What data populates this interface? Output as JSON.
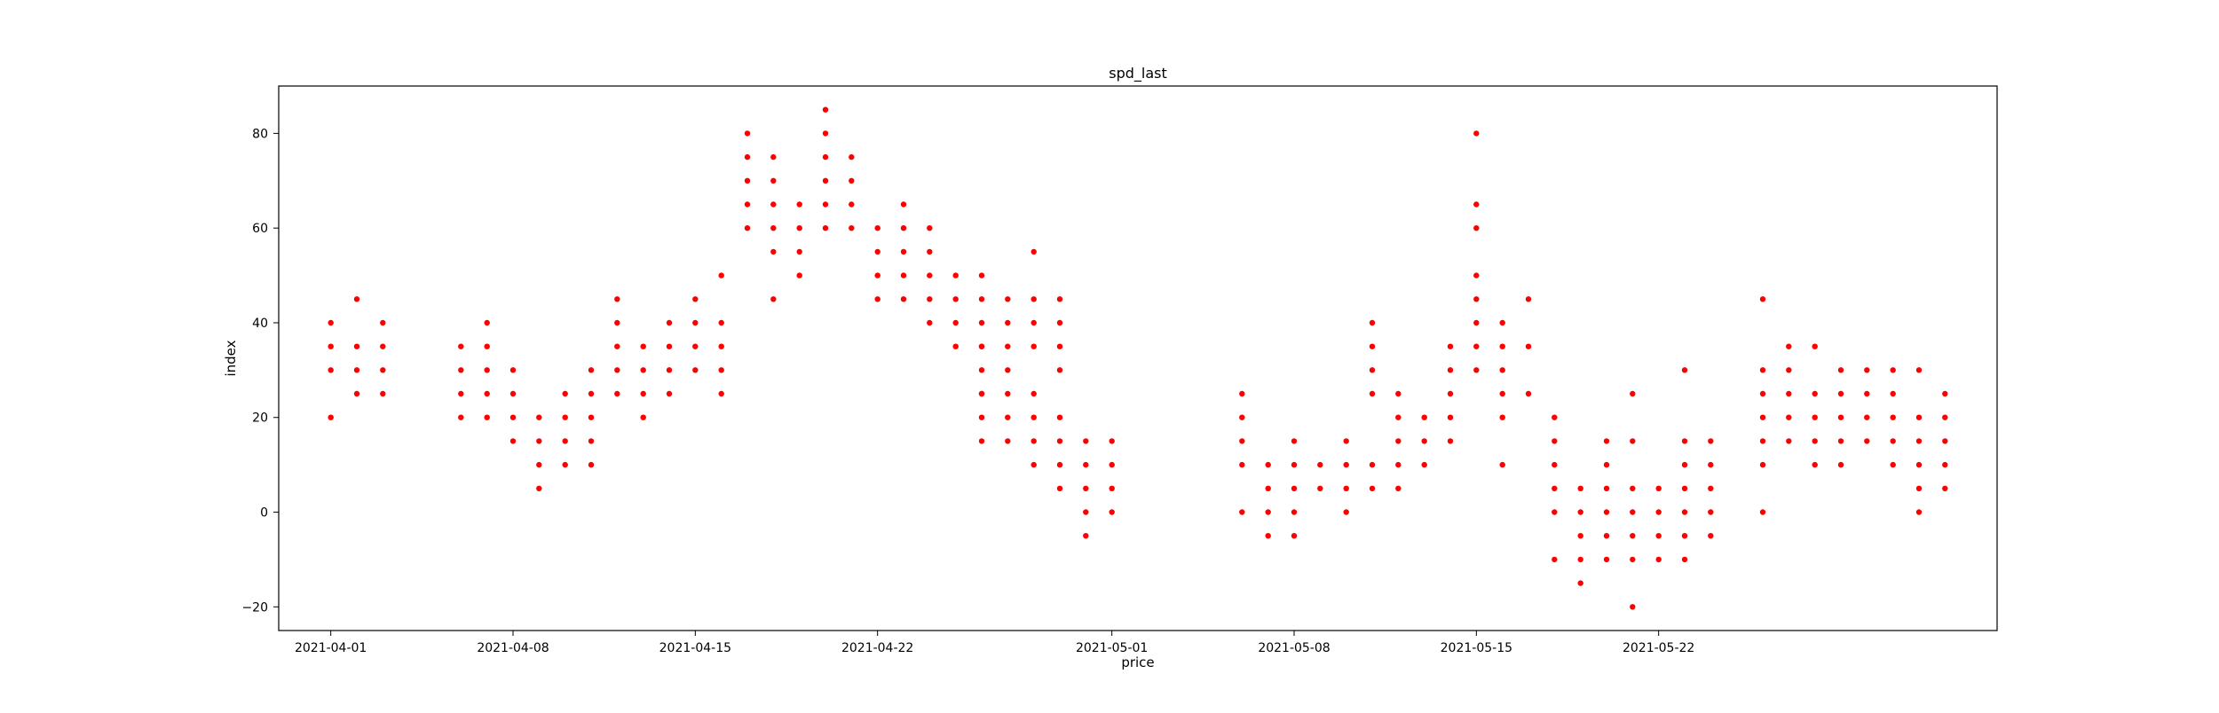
{
  "chart_data": {
    "type": "scatter",
    "title": "spd_last",
    "xlabel": "price",
    "ylabel": "index",
    "x_type": "date",
    "xlim": [
      "2021-03-30",
      "2021-06-04"
    ],
    "ylim": [
      -25,
      90
    ],
    "x_ticks": [
      "2021-04-01",
      "2021-04-08",
      "2021-04-15",
      "2021-04-22",
      "2021-05-01",
      "2021-05-08",
      "2021-05-15",
      "2021-05-22"
    ],
    "y_ticks": [
      -20,
      0,
      20,
      40,
      60,
      80
    ],
    "grid": false,
    "legend": "none",
    "marker_color": "#ff0000",
    "series": [
      {
        "points": [
          [
            "2021-04-01",
            20
          ],
          [
            "2021-04-01",
            30
          ],
          [
            "2021-04-01",
            35
          ],
          [
            "2021-04-01",
            40
          ],
          [
            "2021-04-02",
            25
          ],
          [
            "2021-04-02",
            30
          ],
          [
            "2021-04-02",
            35
          ],
          [
            "2021-04-02",
            45
          ],
          [
            "2021-04-03",
            25
          ],
          [
            "2021-04-03",
            30
          ],
          [
            "2021-04-03",
            35
          ],
          [
            "2021-04-03",
            40
          ],
          [
            "2021-04-06",
            20
          ],
          [
            "2021-04-06",
            25
          ],
          [
            "2021-04-06",
            30
          ],
          [
            "2021-04-06",
            35
          ],
          [
            "2021-04-07",
            20
          ],
          [
            "2021-04-07",
            25
          ],
          [
            "2021-04-07",
            30
          ],
          [
            "2021-04-07",
            35
          ],
          [
            "2021-04-07",
            40
          ],
          [
            "2021-04-08",
            15
          ],
          [
            "2021-04-08",
            20
          ],
          [
            "2021-04-08",
            25
          ],
          [
            "2021-04-08",
            30
          ],
          [
            "2021-04-09",
            5
          ],
          [
            "2021-04-09",
            10
          ],
          [
            "2021-04-09",
            15
          ],
          [
            "2021-04-09",
            20
          ],
          [
            "2021-04-10",
            10
          ],
          [
            "2021-04-10",
            15
          ],
          [
            "2021-04-10",
            20
          ],
          [
            "2021-04-10",
            25
          ],
          [
            "2021-04-11",
            10
          ],
          [
            "2021-04-11",
            15
          ],
          [
            "2021-04-11",
            20
          ],
          [
            "2021-04-11",
            25
          ],
          [
            "2021-04-11",
            30
          ],
          [
            "2021-04-12",
            25
          ],
          [
            "2021-04-12",
            30
          ],
          [
            "2021-04-12",
            35
          ],
          [
            "2021-04-12",
            40
          ],
          [
            "2021-04-12",
            45
          ],
          [
            "2021-04-13",
            20
          ],
          [
            "2021-04-13",
            25
          ],
          [
            "2021-04-13",
            30
          ],
          [
            "2021-04-13",
            35
          ],
          [
            "2021-04-14",
            25
          ],
          [
            "2021-04-14",
            30
          ],
          [
            "2021-04-14",
            35
          ],
          [
            "2021-04-14",
            40
          ],
          [
            "2021-04-15",
            30
          ],
          [
            "2021-04-15",
            35
          ],
          [
            "2021-04-15",
            40
          ],
          [
            "2021-04-15",
            45
          ],
          [
            "2021-04-16",
            25
          ],
          [
            "2021-04-16",
            30
          ],
          [
            "2021-04-16",
            35
          ],
          [
            "2021-04-16",
            40
          ],
          [
            "2021-04-16",
            50
          ],
          [
            "2021-04-17",
            60
          ],
          [
            "2021-04-17",
            65
          ],
          [
            "2021-04-17",
            70
          ],
          [
            "2021-04-17",
            75
          ],
          [
            "2021-04-17",
            80
          ],
          [
            "2021-04-18",
            45
          ],
          [
            "2021-04-18",
            55
          ],
          [
            "2021-04-18",
            60
          ],
          [
            "2021-04-18",
            65
          ],
          [
            "2021-04-18",
            70
          ],
          [
            "2021-04-18",
            75
          ],
          [
            "2021-04-19",
            50
          ],
          [
            "2021-04-19",
            55
          ],
          [
            "2021-04-19",
            60
          ],
          [
            "2021-04-19",
            65
          ],
          [
            "2021-04-20",
            60
          ],
          [
            "2021-04-20",
            65
          ],
          [
            "2021-04-20",
            70
          ],
          [
            "2021-04-20",
            75
          ],
          [
            "2021-04-20",
            80
          ],
          [
            "2021-04-20",
            85
          ],
          [
            "2021-04-21",
            60
          ],
          [
            "2021-04-21",
            65
          ],
          [
            "2021-04-21",
            70
          ],
          [
            "2021-04-21",
            75
          ],
          [
            "2021-04-22",
            45
          ],
          [
            "2021-04-22",
            50
          ],
          [
            "2021-04-22",
            55
          ],
          [
            "2021-04-22",
            60
          ],
          [
            "2021-04-23",
            45
          ],
          [
            "2021-04-23",
            50
          ],
          [
            "2021-04-23",
            55
          ],
          [
            "2021-04-23",
            60
          ],
          [
            "2021-04-23",
            65
          ],
          [
            "2021-04-24",
            40
          ],
          [
            "2021-04-24",
            45
          ],
          [
            "2021-04-24",
            50
          ],
          [
            "2021-04-24",
            55
          ],
          [
            "2021-04-24",
            60
          ],
          [
            "2021-04-25",
            35
          ],
          [
            "2021-04-25",
            40
          ],
          [
            "2021-04-25",
            45
          ],
          [
            "2021-04-25",
            50
          ],
          [
            "2021-04-26",
            25
          ],
          [
            "2021-04-26",
            35
          ],
          [
            "2021-04-26",
            40
          ],
          [
            "2021-04-26",
            45
          ],
          [
            "2021-04-26",
            50
          ],
          [
            "2021-04-27",
            30
          ],
          [
            "2021-04-27",
            35
          ],
          [
            "2021-04-27",
            40
          ],
          [
            "2021-04-27",
            45
          ],
          [
            "2021-04-28",
            35
          ],
          [
            "2021-04-28",
            40
          ],
          [
            "2021-04-28",
            45
          ],
          [
            "2021-04-28",
            55
          ],
          [
            "2021-04-29",
            30
          ],
          [
            "2021-04-29",
            35
          ],
          [
            "2021-04-29",
            40
          ],
          [
            "2021-04-29",
            45
          ],
          [
            "2021-04-26",
            15
          ],
          [
            "2021-04-26",
            20
          ],
          [
            "2021-04-26",
            25
          ],
          [
            "2021-04-26",
            30
          ],
          [
            "2021-04-26",
            35
          ],
          [
            "2021-04-27",
            15
          ],
          [
            "2021-04-27",
            20
          ],
          [
            "2021-04-27",
            25
          ],
          [
            "2021-04-28",
            10
          ],
          [
            "2021-04-28",
            15
          ],
          [
            "2021-04-28",
            20
          ],
          [
            "2021-04-28",
            25
          ],
          [
            "2021-04-29",
            5
          ],
          [
            "2021-04-29",
            10
          ],
          [
            "2021-04-29",
            15
          ],
          [
            "2021-04-29",
            20
          ],
          [
            "2021-04-30",
            -5
          ],
          [
            "2021-04-30",
            0
          ],
          [
            "2021-04-30",
            5
          ],
          [
            "2021-04-30",
            10
          ],
          [
            "2021-04-30",
            15
          ],
          [
            "2021-05-01",
            0
          ],
          [
            "2021-05-01",
            5
          ],
          [
            "2021-05-01",
            10
          ],
          [
            "2021-05-01",
            15
          ],
          [
            "2021-05-06",
            0
          ],
          [
            "2021-05-06",
            10
          ],
          [
            "2021-05-06",
            15
          ],
          [
            "2021-05-06",
            20
          ],
          [
            "2021-05-06",
            25
          ],
          [
            "2021-05-07",
            -5
          ],
          [
            "2021-05-07",
            0
          ],
          [
            "2021-05-07",
            5
          ],
          [
            "2021-05-07",
            10
          ],
          [
            "2021-05-08",
            -5
          ],
          [
            "2021-05-08",
            0
          ],
          [
            "2021-05-08",
            5
          ],
          [
            "2021-05-08",
            10
          ],
          [
            "2021-05-08",
            15
          ],
          [
            "2021-05-09",
            5
          ],
          [
            "2021-05-09",
            10
          ],
          [
            "2021-05-10",
            0
          ],
          [
            "2021-05-10",
            5
          ],
          [
            "2021-05-10",
            10
          ],
          [
            "2021-05-10",
            15
          ],
          [
            "2021-05-11",
            5
          ],
          [
            "2021-05-11",
            10
          ],
          [
            "2021-05-11",
            25
          ],
          [
            "2021-05-11",
            30
          ],
          [
            "2021-05-11",
            35
          ],
          [
            "2021-05-11",
            40
          ],
          [
            "2021-05-12",
            5
          ],
          [
            "2021-05-12",
            10
          ],
          [
            "2021-05-12",
            15
          ],
          [
            "2021-05-12",
            20
          ],
          [
            "2021-05-12",
            25
          ],
          [
            "2021-05-13",
            10
          ],
          [
            "2021-05-13",
            15
          ],
          [
            "2021-05-13",
            20
          ],
          [
            "2021-05-14",
            15
          ],
          [
            "2021-05-14",
            20
          ],
          [
            "2021-05-14",
            25
          ],
          [
            "2021-05-14",
            30
          ],
          [
            "2021-05-14",
            35
          ],
          [
            "2021-05-15",
            30
          ],
          [
            "2021-05-15",
            35
          ],
          [
            "2021-05-15",
            40
          ],
          [
            "2021-05-15",
            45
          ],
          [
            "2021-05-15",
            50
          ],
          [
            "2021-05-15",
            60
          ],
          [
            "2021-05-15",
            65
          ],
          [
            "2021-05-15",
            80
          ],
          [
            "2021-05-16",
            10
          ],
          [
            "2021-05-16",
            20
          ],
          [
            "2021-05-16",
            25
          ],
          [
            "2021-05-16",
            30
          ],
          [
            "2021-05-16",
            35
          ],
          [
            "2021-05-16",
            40
          ],
          [
            "2021-05-17",
            25
          ],
          [
            "2021-05-17",
            35
          ],
          [
            "2021-05-17",
            45
          ],
          [
            "2021-05-18",
            -10
          ],
          [
            "2021-05-18",
            0
          ],
          [
            "2021-05-18",
            5
          ],
          [
            "2021-05-18",
            10
          ],
          [
            "2021-05-18",
            15
          ],
          [
            "2021-05-18",
            20
          ],
          [
            "2021-05-19",
            -15
          ],
          [
            "2021-05-19",
            -10
          ],
          [
            "2021-05-19",
            -5
          ],
          [
            "2021-05-19",
            0
          ],
          [
            "2021-05-19",
            5
          ],
          [
            "2021-05-20",
            -10
          ],
          [
            "2021-05-20",
            -5
          ],
          [
            "2021-05-20",
            0
          ],
          [
            "2021-05-20",
            5
          ],
          [
            "2021-05-20",
            10
          ],
          [
            "2021-05-20",
            15
          ],
          [
            "2021-05-21",
            -20
          ],
          [
            "2021-05-21",
            -10
          ],
          [
            "2021-05-21",
            -5
          ],
          [
            "2021-05-21",
            0
          ],
          [
            "2021-05-21",
            5
          ],
          [
            "2021-05-21",
            15
          ],
          [
            "2021-05-21",
            25
          ],
          [
            "2021-05-22",
            -10
          ],
          [
            "2021-05-22",
            -5
          ],
          [
            "2021-05-22",
            0
          ],
          [
            "2021-05-22",
            5
          ],
          [
            "2021-05-23",
            -10
          ],
          [
            "2021-05-23",
            -5
          ],
          [
            "2021-05-23",
            0
          ],
          [
            "2021-05-23",
            5
          ],
          [
            "2021-05-23",
            10
          ],
          [
            "2021-05-23",
            15
          ],
          [
            "2021-05-23",
            30
          ],
          [
            "2021-05-24",
            -5
          ],
          [
            "2021-05-24",
            0
          ],
          [
            "2021-05-24",
            5
          ],
          [
            "2021-05-24",
            10
          ],
          [
            "2021-05-24",
            15
          ],
          [
            "2021-05-26",
            0
          ],
          [
            "2021-05-26",
            10
          ],
          [
            "2021-05-26",
            15
          ],
          [
            "2021-05-26",
            20
          ],
          [
            "2021-05-26",
            25
          ],
          [
            "2021-05-26",
            30
          ],
          [
            "2021-05-26",
            45
          ],
          [
            "2021-05-27",
            15
          ],
          [
            "2021-05-27",
            20
          ],
          [
            "2021-05-27",
            25
          ],
          [
            "2021-05-27",
            30
          ],
          [
            "2021-05-27",
            35
          ],
          [
            "2021-05-28",
            10
          ],
          [
            "2021-05-28",
            15
          ],
          [
            "2021-05-28",
            20
          ],
          [
            "2021-05-28",
            25
          ],
          [
            "2021-05-28",
            35
          ],
          [
            "2021-05-29",
            10
          ],
          [
            "2021-05-29",
            15
          ],
          [
            "2021-05-29",
            20
          ],
          [
            "2021-05-29",
            25
          ],
          [
            "2021-05-29",
            30
          ],
          [
            "2021-05-30",
            15
          ],
          [
            "2021-05-30",
            20
          ],
          [
            "2021-05-30",
            25
          ],
          [
            "2021-05-30",
            30
          ],
          [
            "2021-05-31",
            10
          ],
          [
            "2021-05-31",
            15
          ],
          [
            "2021-05-31",
            20
          ],
          [
            "2021-05-31",
            25
          ],
          [
            "2021-05-31",
            30
          ],
          [
            "2021-06-01",
            0
          ],
          [
            "2021-06-01",
            5
          ],
          [
            "2021-06-01",
            10
          ],
          [
            "2021-06-01",
            15
          ],
          [
            "2021-06-01",
            20
          ],
          [
            "2021-06-01",
            30
          ],
          [
            "2021-06-02",
            5
          ],
          [
            "2021-06-02",
            10
          ],
          [
            "2021-06-02",
            15
          ],
          [
            "2021-06-02",
            20
          ],
          [
            "2021-06-02",
            25
          ]
        ]
      }
    ]
  }
}
